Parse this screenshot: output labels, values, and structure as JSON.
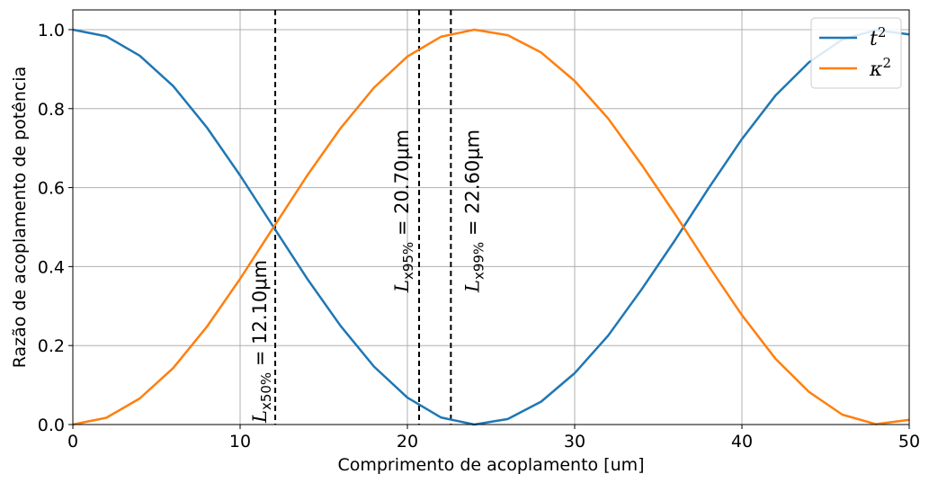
{
  "chart_data": {
    "type": "line",
    "title": "",
    "xlabel": "Comprimento de acoplamento [um]",
    "ylabel": "Razão de acoplamento de potência",
    "xlim": [
      0,
      50
    ],
    "ylim": [
      0,
      1.05
    ],
    "grid": true,
    "x_ticks": [
      0,
      10,
      20,
      30,
      40,
      50
    ],
    "x_tick_labels": [
      "0",
      "10",
      "20",
      "30",
      "40",
      "50"
    ],
    "y_ticks": [
      0.0,
      0.2,
      0.4,
      0.6,
      0.8,
      1.0
    ],
    "y_tick_labels": [
      "0.0",
      "0.2",
      "0.4",
      "0.6",
      "0.8",
      "1.0"
    ],
    "x": [
      0,
      2,
      4,
      6,
      8,
      10,
      12,
      14,
      16,
      18,
      20,
      22,
      24,
      26,
      28,
      30,
      32,
      34,
      36,
      38,
      40,
      42,
      44,
      46,
      48,
      50
    ],
    "series": [
      {
        "name": "t",
        "superscript": "2",
        "color": "#1f77b4",
        "values": [
          1.0,
          0.983,
          0.934,
          0.857,
          0.753,
          0.631,
          0.5,
          0.37,
          0.25,
          0.147,
          0.068,
          0.018,
          0.0,
          0.014,
          0.058,
          0.13,
          0.225,
          0.342,
          0.467,
          0.598,
          0.723,
          0.833,
          0.917,
          0.975,
          0.999,
          0.988
        ]
      },
      {
        "name": "κ",
        "superscript": "2",
        "color": "#ff7f0e",
        "values": [
          0.0,
          0.017,
          0.066,
          0.143,
          0.247,
          0.369,
          0.5,
          0.63,
          0.75,
          0.853,
          0.932,
          0.982,
          1.0,
          0.986,
          0.942,
          0.87,
          0.775,
          0.658,
          0.533,
          0.402,
          0.277,
          0.167,
          0.083,
          0.025,
          0.001,
          0.012
        ]
      }
    ],
    "vlines": [
      {
        "x": 12.1,
        "main": "L",
        "sub": "x50%",
        "value": " = 12.10μm"
      },
      {
        "x": 20.7,
        "main": "L",
        "sub": "x95%",
        "value": " = 20.70μm"
      },
      {
        "x": 22.6,
        "main": "L",
        "sub": "x99%",
        "value": " = 22.60μm"
      }
    ],
    "legend_position": "top-right"
  }
}
